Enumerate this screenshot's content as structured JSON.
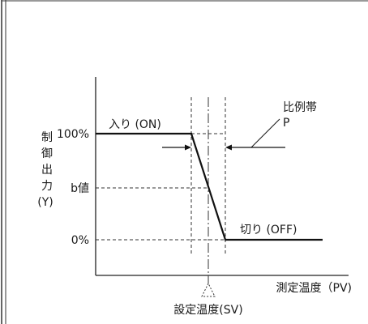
{
  "diagram": {
    "y_axis_label_chars": [
      "制",
      "御",
      "出",
      "力"
    ],
    "y_axis_symbol": "(Y)",
    "x_axis_label": "測定温度（PV)",
    "setpoint_label": "設定温度(SV)",
    "y_ticks": {
      "top": "100%",
      "middle": "b値",
      "bottom": "0%"
    },
    "on_label": "入り (ON)",
    "off_label": "切り (OFF)",
    "band_label_line1": "比例帯",
    "band_label_line2": "P"
  }
}
